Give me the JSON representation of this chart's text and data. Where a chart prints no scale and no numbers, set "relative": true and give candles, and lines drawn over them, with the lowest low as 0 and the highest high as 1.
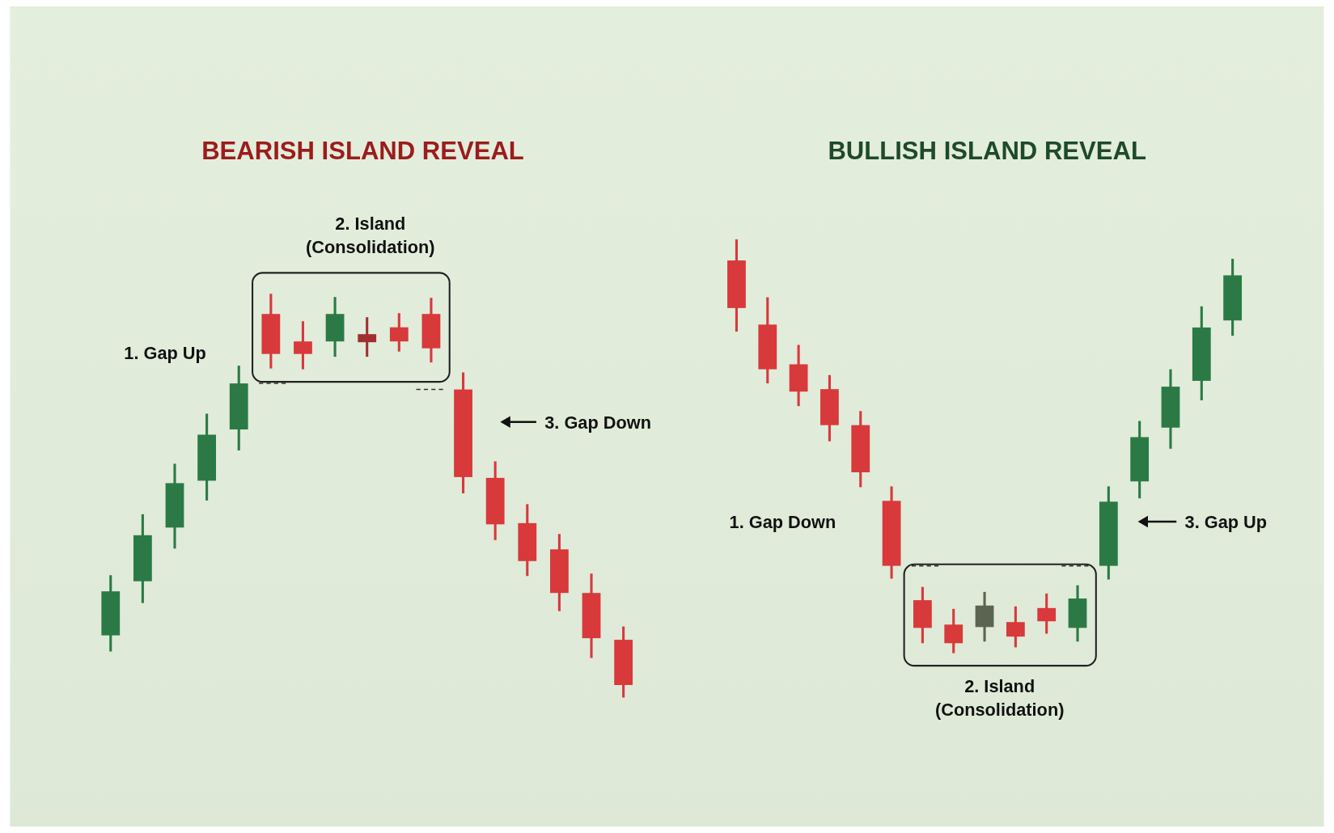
{
  "chart_data": [
    {
      "type": "candlestick",
      "title": "BEARISH ISLAND REVEAL",
      "relative": true,
      "categories": [
        null,
        null,
        null,
        null,
        null,
        null,
        null,
        null,
        null,
        null,
        null,
        null,
        null,
        null,
        null,
        null,
        null
      ],
      "ohlc": [
        [
          0.154,
          0.303,
          0.114,
          0.263
        ],
        [
          0.288,
          0.454,
          0.234,
          0.402
        ],
        [
          0.421,
          0.579,
          0.369,
          0.531
        ],
        [
          0.537,
          0.703,
          0.488,
          0.651
        ],
        [
          0.664,
          0.822,
          0.612,
          0.778
        ],
        [
          0.95,
          1.0,
          0.815,
          0.851
        ],
        [
          0.882,
          0.932,
          0.813,
          0.851
        ],
        [
          0.882,
          0.992,
          0.844,
          0.95
        ],
        [
          0.9,
          0.942,
          0.844,
          0.88
        ],
        [
          0.917,
          0.952,
          0.857,
          0.882
        ],
        [
          0.95,
          0.99,
          0.83,
          0.865
        ],
        [
          0.763,
          0.805,
          0.506,
          0.546
        ],
        [
          0.544,
          0.585,
          0.39,
          0.429
        ],
        [
          0.432,
          0.479,
          0.301,
          0.338
        ],
        [
          0.367,
          0.405,
          0.214,
          0.259
        ],
        [
          0.259,
          0.307,
          0.098,
          0.147
        ],
        [
          0.143,
          0.176,
          0,
          0.031
        ]
      ],
      "colors": [
        "#2b7a45",
        "#2b7a45",
        "#2b7a45",
        "#2b7a45",
        "#2b7a45",
        "#d8393b",
        "#d8393b",
        "#2b7a45",
        "#a0302f",
        "#d8393b",
        "#d8393b",
        "#d8393b",
        "#d8393b",
        "#d8393b",
        "#d8393b",
        "#d8393b",
        "#d8393b"
      ],
      "annotations": [
        "1. Gap Up",
        "2. Island\n(Consolidation)",
        "3. Gap Down"
      ]
    },
    {
      "type": "candlestick",
      "title": "BULLISH ISLAND REVEAL",
      "relative": true,
      "categories": [
        null,
        null,
        null,
        null,
        null,
        null,
        null,
        null,
        null,
        null,
        null,
        null,
        null,
        null,
        null,
        null,
        null
      ],
      "ohlc": [
        [
          0.949,
          1,
          0.777,
          0.834
        ],
        [
          0.794,
          0.86,
          0.652,
          0.686
        ],
        [
          0.698,
          0.745,
          0.597,
          0.632
        ],
        [
          0.638,
          0.672,
          0.512,
          0.551
        ],
        [
          0.551,
          0.585,
          0.401,
          0.437
        ],
        [
          0.368,
          0.403,
          0.18,
          0.211
        ],
        [
          0.128,
          0.16,
          0.024,
          0.061
        ],
        [
          0.069,
          0.107,
          0,
          0.024
        ],
        [
          0.063,
          0.148,
          0.028,
          0.115
        ],
        [
          0.075,
          0.113,
          0.014,
          0.04
        ],
        [
          0.109,
          0.144,
          0.047,
          0.077
        ],
        [
          0.061,
          0.164,
          0.028,
          0.132
        ],
        [
          0.211,
          0.403,
          0.178,
          0.366
        ],
        [
          0.415,
          0.561,
          0.374,
          0.522
        ],
        [
          0.545,
          0.686,
          0.494,
          0.644
        ],
        [
          0.658,
          0.838,
          0.611,
          0.787
        ],
        [
          0.804,
          0.953,
          0.767,
          0.913
        ]
      ],
      "colors": [
        "#d8393b",
        "#d8393b",
        "#d8393b",
        "#d8393b",
        "#d8393b",
        "#d8393b",
        "#d8393b",
        "#d8393b",
        "#5a6450",
        "#d8393b",
        "#d8393b",
        "#2b7a45",
        "#2b7a45",
        "#2b7a45",
        "#2b7a45",
        "#2b7a45",
        "#2b7a45"
      ],
      "annotations": [
        "1. Gap Down",
        "2. Island\n(Consolidation)",
        "3. Gap Up"
      ]
    }
  ]
}
